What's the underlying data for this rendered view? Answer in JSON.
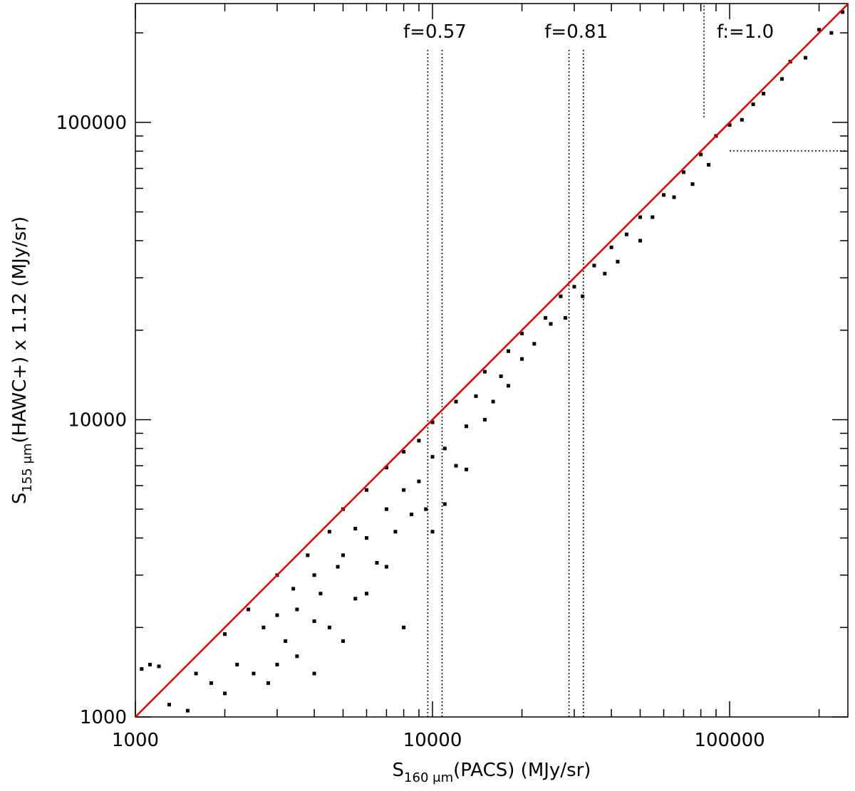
{
  "chart_data": {
    "type": "scatter",
    "xlabel": [
      "S",
      "160 μm",
      "(PACS)  (MJy/sr)"
    ],
    "ylabel": [
      "S",
      "155 μm",
      "(HAWC+) x 1.12  (MJy/sr)"
    ],
    "xscale": "log",
    "yscale": "log",
    "xlim": [
      1000,
      250000
    ],
    "ylim": [
      1000,
      251000
    ],
    "xticks": [
      1000,
      10000,
      100000
    ],
    "yticks": [
      1000,
      10000,
      100000
    ],
    "xminor_ticks": [
      2000,
      3000,
      4000,
      5000,
      6000,
      7000,
      8000,
      9000,
      20000,
      30000,
      40000,
      50000,
      60000,
      70000,
      80000,
      90000,
      200000
    ],
    "yminor_ticks": [
      2000,
      3000,
      4000,
      5000,
      6000,
      7000,
      8000,
      9000,
      20000,
      30000,
      40000,
      50000,
      60000,
      70000,
      80000,
      90000,
      200000
    ],
    "series": [
      {
        "color": "#000000",
        "x": [
          1050,
          1120,
          1200,
          1300,
          1500,
          1600,
          1800,
          2000,
          2000,
          2200,
          2400,
          2500,
          2700,
          2800,
          3000,
          3000,
          3000,
          3200,
          3400,
          3500,
          3500,
          3800,
          4000,
          4000,
          4000,
          4200,
          4500,
          4500,
          4800,
          5000,
          5000,
          5000,
          5500,
          5500,
          6000,
          6000,
          6000,
          6500,
          7000,
          7000,
          7000,
          7500,
          8000,
          8000,
          8000,
          8500,
          9000,
          9000,
          9500,
          10000,
          10000,
          10000,
          11000,
          11000,
          12000,
          12000,
          13000,
          13000,
          14000,
          15000,
          15000,
          16000,
          17000,
          18000,
          18000,
          20000,
          20000,
          22000,
          24000,
          25000,
          27000,
          28000,
          30000,
          32000,
          35000,
          38000,
          40000,
          42000,
          45000,
          50000,
          50000,
          55000,
          60000,
          65000,
          70000,
          75000,
          80000,
          85000,
          90000,
          100000,
          110000,
          120000,
          130000,
          150000,
          160000,
          180000,
          200000,
          220000,
          240000
        ],
        "values": [
          1450,
          1500,
          1480,
          1100,
          1050,
          1400,
          1300,
          1900,
          1200,
          1500,
          2300,
          1400,
          2000,
          1300,
          3000,
          2200,
          1500,
          1800,
          2700,
          1600,
          2300,
          3500,
          3000,
          2100,
          1400,
          2600,
          4200,
          2000,
          3200,
          5000,
          3500,
          1800,
          2500,
          4300,
          5800,
          4000,
          2600,
          3300,
          6900,
          5000,
          3200,
          4200,
          7800,
          5800,
          2000,
          4800,
          8500,
          6200,
          5000,
          9800,
          7500,
          4200,
          8000,
          5200,
          11500,
          7000,
          9500,
          6800,
          12000,
          14500,
          10000,
          11500,
          14000,
          17000,
          13000,
          19500,
          16000,
          18000,
          22000,
          21000,
          26000,
          22000,
          28000,
          26000,
          33000,
          31000,
          38000,
          34000,
          42000,
          48000,
          40000,
          48000,
          57000,
          56000,
          68000,
          62000,
          78000,
          72000,
          90000,
          98000,
          102000,
          115000,
          125000,
          140000,
          160000,
          165000,
          205000,
          200000,
          235000
        ]
      }
    ],
    "fit_line": {
      "color": "#e00000",
      "x": [
        1000,
        250000
      ],
      "y": [
        1000,
        250000
      ]
    },
    "vlines": [
      {
        "x": 9640,
        "y": [
          1000,
          177000
        ]
      },
      {
        "x": 10770,
        "y": [
          1000,
          177000
        ]
      },
      {
        "x": 28800,
        "y": [
          1000,
          177000
        ]
      },
      {
        "x": 32200,
        "y": [
          1000,
          177000
        ]
      },
      {
        "x": 82000,
        "y": [
          104000,
          251000
        ]
      }
    ],
    "hlines": [
      {
        "y": 80200,
        "x": [
          100000,
          250000
        ]
      }
    ],
    "annotations": [
      "f=0.57",
      "f=0.81",
      "f:=1.0"
    ]
  }
}
